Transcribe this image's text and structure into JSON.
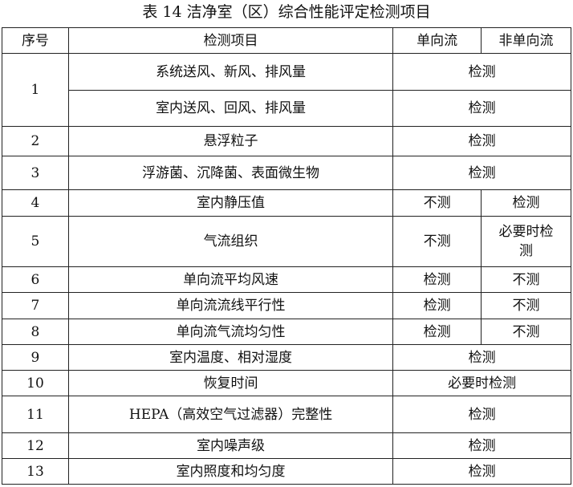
{
  "title": "表 14 洁净室（区）综合性能评定检测项目",
  "headers": [
    "序号",
    "检测项目",
    "单向流",
    "非单向流"
  ],
  "rows": [
    {
      "no": "1",
      "item": "系统送风、新风、排风量",
      "merged": "检测"
    },
    {
      "item": "室内送风、回风、排风量",
      "merged": "检测"
    },
    {
      "no": "2",
      "item": "悬浮粒子",
      "merged": "检测"
    },
    {
      "no": "3",
      "item": "浮游菌、沉降菌、表面微生物",
      "merged": "检测"
    },
    {
      "no": "4",
      "item": "室内静压值",
      "uni": "不测",
      "non": "检测"
    },
    {
      "no": "5",
      "item": "气流组织",
      "uni": "不测",
      "non": "必要时检测"
    },
    {
      "no": "6",
      "item": "单向流平均风速",
      "uni": "检测",
      "non": "不测"
    },
    {
      "no": "7",
      "item": "单向流流线平行性",
      "uni": "检测",
      "non": "不测"
    },
    {
      "no": "8",
      "item": "单向流气流均匀性",
      "uni": "检测",
      "non": "不测"
    },
    {
      "no": "9",
      "item": "室内温度、相对湿度",
      "merged": "检测"
    },
    {
      "no": "10",
      "item": "恢复时间",
      "merged": "必要时检测"
    },
    {
      "no": "11",
      "item": "HEPA（高效空气过滤器）完整性",
      "merged": "检测"
    },
    {
      "no": "12",
      "item": "室内噪声级",
      "merged": "检测"
    },
    {
      "no": "13",
      "item": "室内照度和均匀度",
      "merged": "检测"
    }
  ]
}
